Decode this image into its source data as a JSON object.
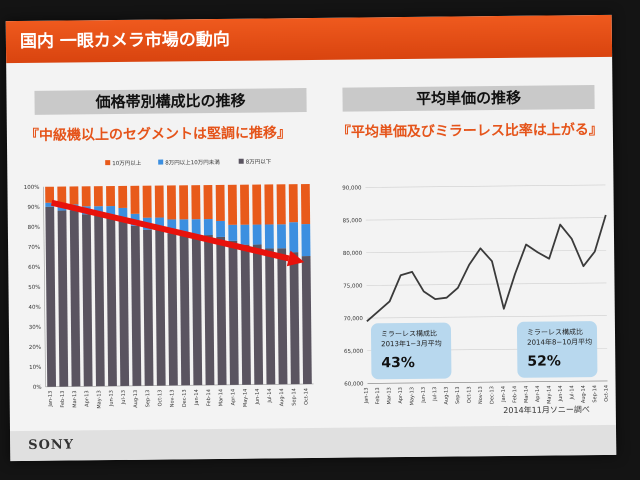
{
  "header": {
    "title": "国内 一眼カメラ市場の動向"
  },
  "left_panel": {
    "title": "価格帯別構成比の推移",
    "subtitle": "『中級機以上のセグメントは堅調に推移』"
  },
  "right_panel": {
    "title": "平均単価の推移",
    "subtitle": "『平均単価及びミラーレス比率は上がる』",
    "callout_1": {
      "line1": "ミラーレス構成比",
      "line2": "2013年1−3月平均",
      "value": "43%"
    },
    "callout_2": {
      "line1": "ミラーレス構成比",
      "line2": "2014年8−10月平均",
      "value": "52%"
    }
  },
  "footer": {
    "brand": "SONY",
    "source": "2014年11月ソニー調べ"
  },
  "colors": {
    "high": "#e85a1a",
    "mid": "#3c8fe0",
    "low": "#5a5460",
    "trend_arrow": "#e8120c",
    "line": "#3a3a3a"
  },
  "chart_data": [
    {
      "type": "bar",
      "stacked": true,
      "categories": [
        "Jan-13",
        "Feb-13",
        "Mar-13",
        "Apr-13",
        "May-13",
        "Jun-13",
        "Jul-13",
        "Aug-13",
        "Sep-13",
        "Oct-13",
        "Nov-13",
        "Dec-13",
        "Jan-14",
        "Feb-14",
        "Mar-14",
        "Apr-14",
        "May-14",
        "Jun-14",
        "Jul-14",
        "Aug-14",
        "Sep-14",
        "Oct-14"
      ],
      "series": [
        {
          "name": "8万円以下",
          "values": [
            90,
            88,
            88,
            86,
            86,
            85,
            84,
            80,
            78,
            78,
            76,
            76,
            75,
            75,
            74,
            72,
            70,
            70,
            68,
            68,
            66,
            64
          ]
        },
        {
          "name": "8万円以上10万円未満",
          "values": [
            2,
            3,
            3,
            4,
            4,
            5,
            5,
            6,
            6,
            6,
            7,
            7,
            8,
            8,
            8,
            8,
            10,
            10,
            12,
            12,
            15,
            16
          ]
        },
        {
          "name": "10万円以上",
          "values": [
            8,
            9,
            9,
            10,
            10,
            10,
            11,
            14,
            16,
            16,
            17,
            17,
            17,
            17,
            18,
            20,
            20,
            20,
            20,
            20,
            19,
            20
          ]
        }
      ],
      "yticks": [
        "0%",
        "10%",
        "20%",
        "30%",
        "40%",
        "50%",
        "60%",
        "70%",
        "80%",
        "90%",
        "100%"
      ],
      "ylim": [
        0,
        100
      ]
    },
    {
      "type": "line",
      "x": [
        "Jan-13",
        "Feb-13",
        "Mar-13",
        "Apr-13",
        "May-13",
        "Jun-13",
        "Jul-13",
        "Aug-13",
        "Sep-13",
        "Oct-13",
        "Nov-13",
        "Dec-13",
        "Jan-14",
        "Feb-14",
        "Mar-14",
        "Apr-14",
        "May-14",
        "Jun-14",
        "Jul-14",
        "Aug-14",
        "Sep-14",
        "Oct-14"
      ],
      "series": [
        {
          "values": [
            69500,
            71000,
            72500,
            76500,
            77000,
            74000,
            72800,
            73000,
            74500,
            78000,
            80500,
            78500,
            71200,
            76500,
            81000,
            79800,
            78800,
            84000,
            81800,
            77600,
            79800,
            85400
          ]
        }
      ],
      "yticks": [
        "60,000",
        "65,000",
        "70,000",
        "75,000",
        "80,000",
        "85,000",
        "90,000"
      ],
      "ylim": [
        60000,
        90000
      ]
    }
  ]
}
